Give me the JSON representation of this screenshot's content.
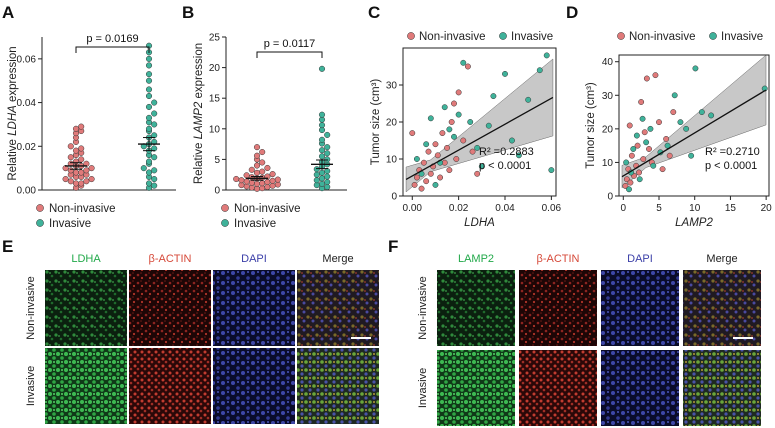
{
  "panels": {
    "A": "A",
    "B": "B",
    "C": "C",
    "D": "D",
    "E": "E",
    "F": "F"
  },
  "colors": {
    "non_invasive": "#e07a7a",
    "invasive": "#3fb29a",
    "green_channel": "#22a94a",
    "red_channel": "#d64a3a",
    "blue_channel": "#3b3fa8",
    "ci_band": "#9a9a9a"
  },
  "chart_data": [
    {
      "panel": "A",
      "type": "scatter",
      "ylabel_prefix": "Relative ",
      "ylabel_gene": "LDHA",
      "ylabel_suffix": " expression",
      "ylim": [
        0,
        0.07
      ],
      "yticks": [
        "0.00",
        "0.02",
        "0.04",
        "0.06"
      ],
      "ytick_values": [
        0,
        0.02,
        0.04,
        0.06
      ],
      "pvalue": "p = 0.0169",
      "legend": [
        "Non-invasive",
        "Invasive"
      ],
      "groups": [
        {
          "name": "Non-invasive",
          "mean": 0.011,
          "sem": 0.0015,
          "values": [
            0.001,
            0.002,
            0.003,
            0.003,
            0.004,
            0.004,
            0.005,
            0.005,
            0.006,
            0.006,
            0.007,
            0.007,
            0.008,
            0.008,
            0.009,
            0.009,
            0.01,
            0.01,
            0.011,
            0.011,
            0.012,
            0.012,
            0.013,
            0.014,
            0.015,
            0.016,
            0.017,
            0.018,
            0.019,
            0.02,
            0.022,
            0.024,
            0.026,
            0.027,
            0.028,
            0.029
          ]
        },
        {
          "name": "Invasive",
          "mean": 0.021,
          "sem": 0.003,
          "values": [
            0.001,
            0.002,
            0.003,
            0.005,
            0.006,
            0.008,
            0.009,
            0.01,
            0.012,
            0.013,
            0.015,
            0.016,
            0.018,
            0.019,
            0.02,
            0.021,
            0.022,
            0.024,
            0.025,
            0.027,
            0.028,
            0.03,
            0.031,
            0.033,
            0.035,
            0.038,
            0.04,
            0.043,
            0.046,
            0.05,
            0.053,
            0.057,
            0.06,
            0.063,
            0.066
          ]
        }
      ]
    },
    {
      "panel": "B",
      "type": "scatter",
      "ylabel_prefix": "Relative ",
      "ylabel_gene": "LAMP2",
      "ylabel_suffix": " expression",
      "ylim": [
        0,
        25
      ],
      "yticks": [
        "0",
        "5",
        "10",
        "15",
        "20",
        "25"
      ],
      "ytick_values": [
        0,
        5,
        10,
        15,
        20,
        25
      ],
      "pvalue": "p = 0.0117",
      "legend": [
        "Non-invasive",
        "Invasive"
      ],
      "groups": [
        {
          "name": "Non-invasive",
          "mean": 1.9,
          "sem": 0.3,
          "values": [
            0.2,
            0.3,
            0.4,
            0.5,
            0.6,
            0.7,
            0.8,
            0.9,
            1.0,
            1.1,
            1.2,
            1.3,
            1.4,
            1.5,
            1.6,
            1.7,
            1.8,
            1.9,
            2.0,
            2.1,
            2.2,
            2.4,
            2.6,
            2.8,
            3.0,
            3.3,
            3.6,
            4.0,
            4.5,
            5.0,
            5.6,
            6.2,
            7.0
          ]
        },
        {
          "name": "Invasive",
          "mean": 4.2,
          "sem": 0.7,
          "values": [
            0.3,
            0.5,
            0.8,
            1.0,
            1.3,
            1.6,
            1.9,
            2.2,
            2.5,
            2.8,
            3.1,
            3.4,
            3.8,
            4.2,
            4.6,
            5.0,
            5.5,
            6.0,
            6.5,
            7.0,
            7.6,
            8.2,
            9.0,
            9.8,
            10.6,
            11.5,
            12.3,
            19.8
          ]
        }
      ]
    },
    {
      "panel": "C",
      "type": "scatter",
      "xlabel": "LDHA",
      "ylabel": "Tumor size (cm³)",
      "xlim": [
        -0.004,
        0.062
      ],
      "ylim": [
        0,
        40
      ],
      "xticks": [
        "0.00",
        "0.02",
        "0.04",
        "0.06"
      ],
      "xtick_values": [
        0,
        0.02,
        0.04,
        0.06
      ],
      "yticks": [
        "0",
        "10",
        "20",
        "30"
      ],
      "ytick_values": [
        0,
        10,
        20,
        30
      ],
      "legend": [
        "Non-invasive",
        "Invasive"
      ],
      "r2": "R² =0.2883",
      "p": "p < 0.0001",
      "fit": {
        "intercept": 5.4,
        "slope": 350
      },
      "series": [
        {
          "name": "Non-invasive",
          "points": [
            [
              0.001,
              3
            ],
            [
              0.002,
              5
            ],
            [
              0.003,
              7
            ],
            [
              0.004,
              2
            ],
            [
              0.005,
              9
            ],
            [
              0.006,
              4
            ],
            [
              0.007,
              12
            ],
            [
              0.008,
              6
            ],
            [
              0.009,
              8
            ],
            [
              0.01,
              14
            ],
            [
              0.011,
              11
            ],
            [
              0.012,
              5
            ],
            [
              0.013,
              17
            ],
            [
              0.014,
              9
            ],
            [
              0.015,
              13
            ],
            [
              0.016,
              7
            ],
            [
              0.017,
              20
            ],
            [
              0.018,
              25
            ],
            [
              0.019,
              10
            ],
            [
              0.02,
              28
            ],
            [
              0.022,
              15
            ],
            [
              0.024,
              35
            ],
            [
              0.026,
              12
            ],
            [
              0.028,
              6
            ],
            [
              0.0,
              17
            ]
          ]
        },
        {
          "name": "Invasive",
          "points": [
            [
              0.002,
              10
            ],
            [
              0.004,
              6
            ],
            [
              0.006,
              14
            ],
            [
              0.008,
              21
            ],
            [
              0.01,
              3
            ],
            [
              0.012,
              9
            ],
            [
              0.014,
              24
            ],
            [
              0.016,
              18
            ],
            [
              0.018,
              16
            ],
            [
              0.02,
              22
            ],
            [
              0.022,
              36
            ],
            [
              0.025,
              20
            ],
            [
              0.028,
              13
            ],
            [
              0.03,
              8
            ],
            [
              0.033,
              19
            ],
            [
              0.035,
              27
            ],
            [
              0.04,
              33
            ],
            [
              0.043,
              15
            ],
            [
              0.046,
              11
            ],
            [
              0.05,
              26
            ],
            [
              0.055,
              34
            ],
            [
              0.058,
              38
            ],
            [
              0.06,
              7
            ]
          ]
        }
      ]
    },
    {
      "panel": "D",
      "type": "scatter",
      "xlabel": "LAMP2",
      "ylabel": "Tumor size (cm³)",
      "xlim": [
        -0.6,
        20.4
      ],
      "ylim": [
        0,
        42
      ],
      "xticks": [
        "0",
        "5",
        "10",
        "15",
        "20"
      ],
      "xtick_values": [
        0,
        5,
        10,
        15,
        20
      ],
      "yticks": [
        "0",
        "10",
        "20",
        "30",
        "40"
      ],
      "ytick_values": [
        0,
        10,
        20,
        30,
        40
      ],
      "legend": [
        "Non-invasive",
        "Invasive"
      ],
      "r2": "R² =0.2710",
      "p": "p < 0.0001",
      "fit": {
        "intercept": 6.0,
        "slope": 1.28
      },
      "series": [
        {
          "name": "Non-invasive",
          "points": [
            [
              0.3,
              3
            ],
            [
              0.5,
              5
            ],
            [
              0.7,
              8
            ],
            [
              1.0,
              4
            ],
            [
              1.2,
              12
            ],
            [
              1.5,
              6
            ],
            [
              1.8,
              9
            ],
            [
              2.0,
              15
            ],
            [
              2.2,
              7
            ],
            [
              2.5,
              28
            ],
            [
              2.8,
              11
            ],
            [
              3.0,
              19
            ],
            [
              3.3,
              35
            ],
            [
              3.6,
              14
            ],
            [
              4.0,
              10
            ],
            [
              4.5,
              36
            ],
            [
              5.0,
              22
            ],
            [
              5.5,
              8
            ],
            [
              6.0,
              17
            ],
            [
              6.5,
              12
            ],
            [
              7.0,
              25
            ],
            [
              0.9,
              21
            ]
          ]
        },
        {
          "name": "Invasive",
          "points": [
            [
              0.4,
              10
            ],
            [
              0.8,
              2
            ],
            [
              1.1,
              7
            ],
            [
              1.4,
              14
            ],
            [
              1.9,
              18
            ],
            [
              2.3,
              5
            ],
            [
              2.7,
              23
            ],
            [
              3.2,
              16
            ],
            [
              3.8,
              20
            ],
            [
              4.2,
              9
            ],
            [
              5.2,
              13
            ],
            [
              6.2,
              15
            ],
            [
              7.2,
              30
            ],
            [
              8.0,
              22
            ],
            [
              8.8,
              20
            ],
            [
              9.5,
              12
            ],
            [
              10.1,
              38
            ],
            [
              11.0,
              25
            ],
            [
              12.3,
              24
            ],
            [
              19.8,
              32
            ]
          ]
        }
      ]
    }
  ],
  "micrographs": {
    "E": {
      "columns": [
        "LDHA",
        "β-ACTIN",
        "DAPI",
        "Merge"
      ],
      "rows": [
        "Non-invasive",
        "Invasive"
      ]
    },
    "F": {
      "columns": [
        "LAMP2",
        "β-ACTIN",
        "DAPI",
        "Merge"
      ],
      "rows": [
        "Non-invasive",
        "Invasive"
      ]
    }
  }
}
